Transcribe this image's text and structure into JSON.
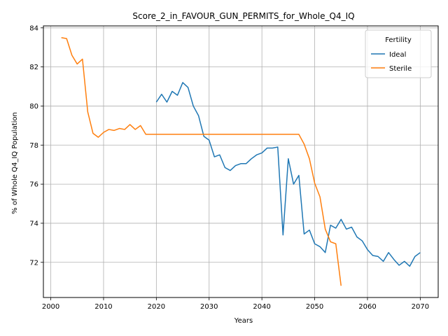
{
  "chart_data": {
    "type": "line",
    "title": "Score_2_in_FAVOUR_GUN_PERMITS_for_Whole_Q4_IQ",
    "xlabel": "Years",
    "ylabel": "% of Whole Q4_IQ Population",
    "xlim": [
      1998.6,
      2073.4
    ],
    "ylim": [
      70.2,
      84.1
    ],
    "xticks": [
      2000,
      2010,
      2020,
      2030,
      2040,
      2050,
      2060,
      2070
    ],
    "yticks": [
      72,
      74,
      76,
      78,
      80,
      82,
      84
    ],
    "grid": true,
    "legend": {
      "title": "Fertility",
      "placement": "top-right"
    },
    "series": [
      {
        "name": "Ideal",
        "color": "#1f77b4",
        "x": [
          2020,
          2021,
          2022,
          2023,
          2024,
          2025,
          2026,
          2027,
          2028,
          2029,
          2030,
          2031,
          2032,
          2033,
          2034,
          2035,
          2036,
          2037,
          2038,
          2039,
          2040,
          2041,
          2042,
          2043,
          2044,
          2045,
          2046,
          2047,
          2048,
          2049,
          2050,
          2051,
          2052,
          2053,
          2054,
          2055,
          2056,
          2057,
          2058,
          2059,
          2060,
          2061,
          2062,
          2063,
          2064,
          2065,
          2066,
          2067,
          2068,
          2069,
          2070
        ],
        "y": [
          80.2,
          80.6,
          80.2,
          80.75,
          80.55,
          81.2,
          80.95,
          80.0,
          79.5,
          78.45,
          78.25,
          77.4,
          77.5,
          76.85,
          76.7,
          76.95,
          77.05,
          77.05,
          77.3,
          77.5,
          77.6,
          77.85,
          77.85,
          77.9,
          73.4,
          77.3,
          76.0,
          76.45,
          73.45,
          73.65,
          72.95,
          72.8,
          72.5,
          73.9,
          73.75,
          74.2,
          73.7,
          73.8,
          73.3,
          73.1,
          72.65,
          72.35,
          72.3,
          72.05,
          72.5,
          72.15,
          71.85,
          72.05,
          71.8,
          72.3,
          72.5
        ]
      },
      {
        "name": "Sterile",
        "color": "#ff7f0e",
        "x": [
          2002,
          2003,
          2004,
          2005,
          2006,
          2007,
          2008,
          2009,
          2010,
          2011,
          2012,
          2013,
          2014,
          2015,
          2016,
          2017,
          2018,
          2019,
          2020,
          2021,
          2022,
          2023,
          2024,
          2025,
          2026,
          2027,
          2028,
          2029,
          2030,
          2031,
          2032,
          2033,
          2034,
          2035,
          2036,
          2037,
          2038,
          2039,
          2040,
          2041,
          2042,
          2043,
          2044,
          2045,
          2046,
          2047,
          2048,
          2049,
          2050,
          2051,
          2052,
          2053,
          2054,
          2055
        ],
        "y": [
          83.5,
          83.45,
          82.6,
          82.15,
          82.4,
          79.7,
          78.6,
          78.4,
          78.65,
          78.8,
          78.75,
          78.85,
          78.8,
          79.05,
          78.8,
          79.0,
          78.55,
          78.55,
          78.55,
          78.55,
          78.55,
          78.55,
          78.55,
          78.55,
          78.55,
          78.55,
          78.55,
          78.55,
          78.55,
          78.55,
          78.55,
          78.55,
          78.55,
          78.55,
          78.55,
          78.55,
          78.55,
          78.55,
          78.55,
          78.55,
          78.55,
          78.55,
          78.55,
          78.55,
          78.55,
          78.55,
          78.05,
          77.3,
          76.05,
          75.35,
          73.7,
          73.05,
          72.95,
          70.8
        ]
      }
    ]
  }
}
